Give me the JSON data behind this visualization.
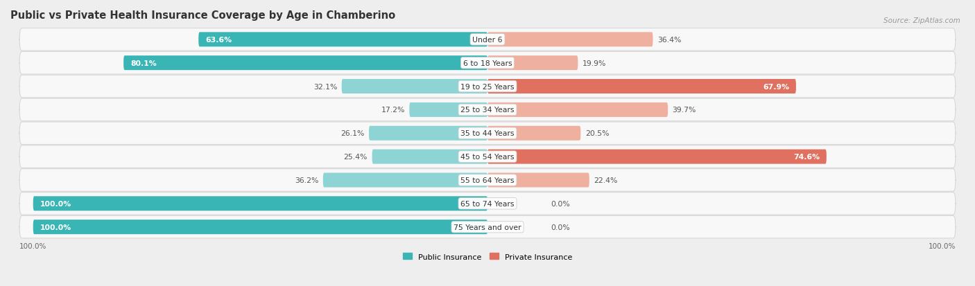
{
  "title": "Public vs Private Health Insurance Coverage by Age in Chamberino",
  "source": "Source: ZipAtlas.com",
  "categories": [
    "Under 6",
    "6 to 18 Years",
    "19 to 25 Years",
    "25 to 34 Years",
    "35 to 44 Years",
    "45 to 54 Years",
    "55 to 64 Years",
    "65 to 74 Years",
    "75 Years and over"
  ],
  "public_values": [
    63.6,
    80.1,
    32.1,
    17.2,
    26.1,
    25.4,
    36.2,
    100.0,
    100.0
  ],
  "private_values": [
    36.4,
    19.9,
    67.9,
    39.7,
    20.5,
    74.6,
    22.4,
    0.0,
    0.0
  ],
  "public_color_dark": "#3ab5b5",
  "public_color_light": "#8fd4d4",
  "private_color_dark": "#e07060",
  "private_color_light": "#f0b0a0",
  "bg_color": "#eeeeee",
  "row_bg_color": "#f8f8f8",
  "row_border_color": "#d8d8d8",
  "bar_height": 0.62,
  "title_fontsize": 10.5,
  "label_fontsize": 7.8,
  "value_fontsize": 7.8,
  "legend_fontsize": 8,
  "source_fontsize": 7.5,
  "axis_label_fontsize": 7.5
}
